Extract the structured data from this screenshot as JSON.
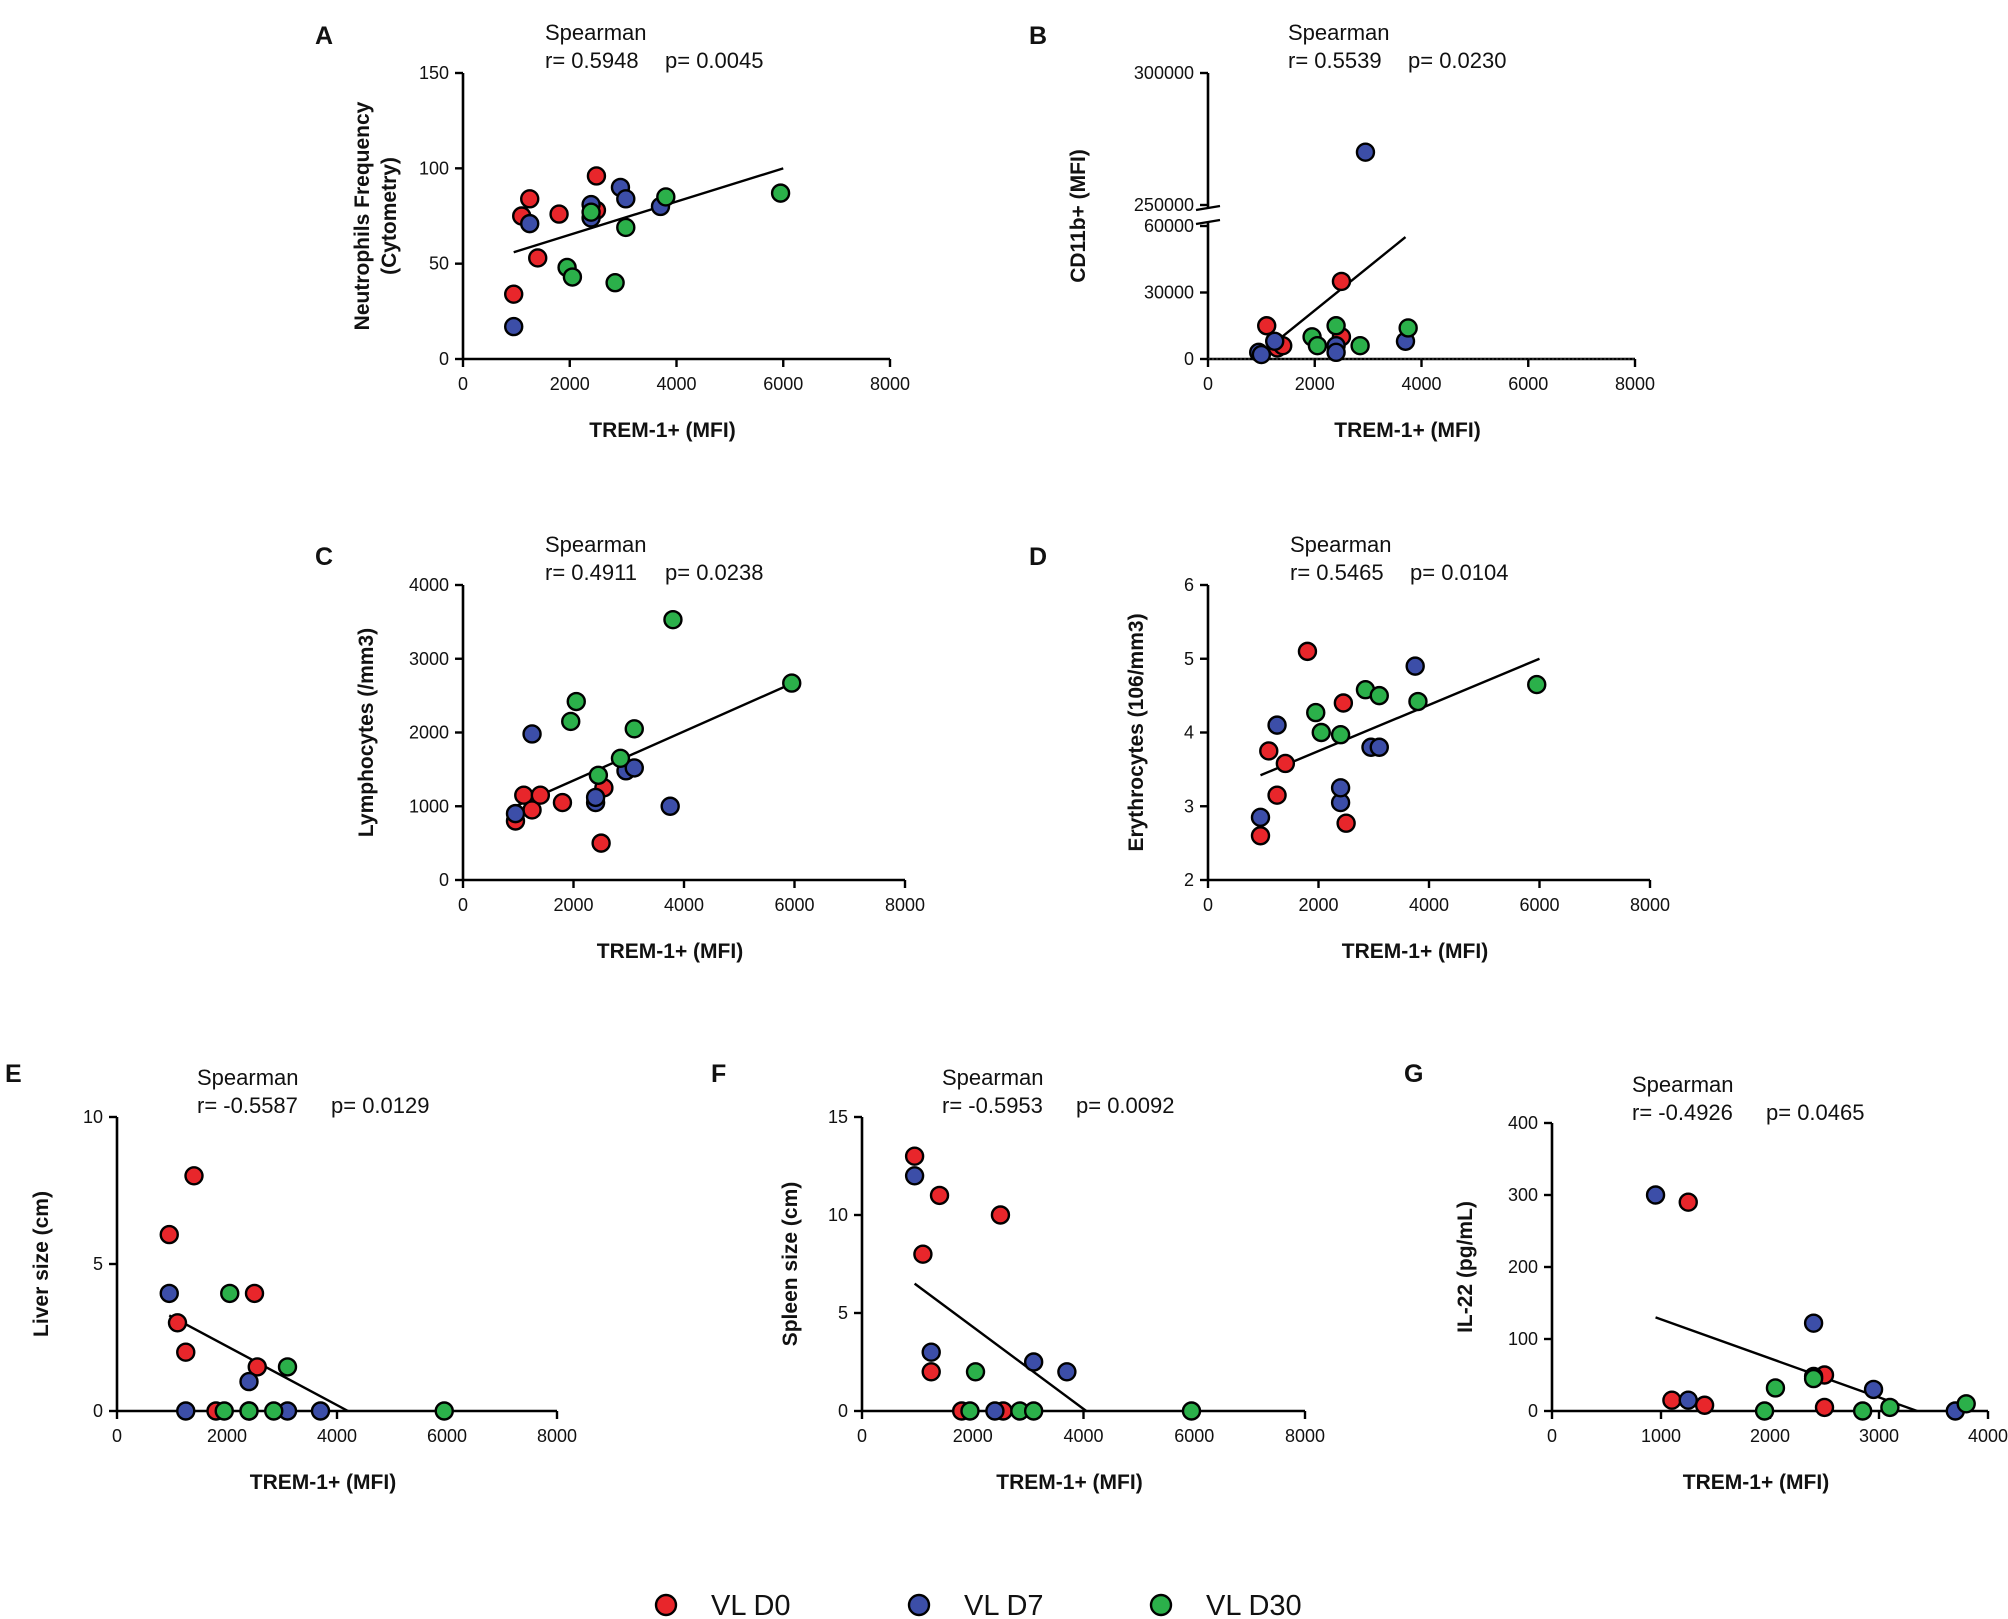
{
  "legend": [
    {
      "label": "VL D0",
      "color": "#e8262b"
    },
    {
      "label": "VL D7",
      "color": "#3c4ea8"
    },
    {
      "label": "VL D30",
      "color": "#2bb04a"
    }
  ],
  "chart_data": [
    {
      "panel": "A",
      "type": "scatter",
      "stat_title": "Spearman",
      "stat_r": "r= 0.5948",
      "stat_p": "p= 0.0045",
      "xlabel": "TREM-1+ (MFI)",
      "ylabel": [
        "Neutrophils Frequency",
        "(Cytometry)"
      ],
      "xlim": [
        0,
        8000
      ],
      "ylim": [
        0,
        150
      ],
      "xticks": [
        0,
        2000,
        4000,
        6000,
        8000
      ],
      "yticks": [
        0,
        50,
        100,
        150
      ],
      "fit": [
        [
          950,
          56
        ],
        [
          6000,
          100
        ]
      ],
      "series": [
        {
          "name": "VL D0",
          "points": [
            [
              950,
              34
            ],
            [
              1100,
              75
            ],
            [
              1250,
              84
            ],
            [
              1400,
              53
            ],
            [
              1800,
              76
            ],
            [
              2500,
              96
            ],
            [
              2500,
              78
            ]
          ]
        },
        {
          "name": "VL D7",
          "points": [
            [
              950,
              17
            ],
            [
              1250,
              71
            ],
            [
              2400,
              74
            ],
            [
              2400,
              81
            ],
            [
              2950,
              90
            ],
            [
              3050,
              84
            ],
            [
              3700,
              80
            ]
          ]
        },
        {
          "name": "VL D30",
          "points": [
            [
              1950,
              48
            ],
            [
              2050,
              43
            ],
            [
              2400,
              77
            ],
            [
              2850,
              40
            ],
            [
              3050,
              69
            ],
            [
              3800,
              85
            ],
            [
              5950,
              87
            ]
          ]
        }
      ]
    },
    {
      "panel": "B",
      "type": "scatter",
      "stat_title": "Spearman",
      "stat_r": "r= 0.5539",
      "stat_p": "p= 0.0230",
      "xlabel": "TREM-1+ (MFI)",
      "ylabel": [
        "CD11b+ (MFI)"
      ],
      "xlim": [
        0,
        8000
      ],
      "y_axis_break": {
        "lower_range": [
          0,
          60000
        ],
        "upper_range": [
          250000,
          300000
        ]
      },
      "xticks": [
        0,
        2000,
        4000,
        6000,
        8000
      ],
      "yticks": [
        0,
        30000,
        60000,
        250000,
        300000
      ],
      "fit": [
        [
          950,
          1500
        ],
        [
          3700,
          55000
        ]
      ],
      "series": [
        {
          "name": "VL D0",
          "points": [
            [
              1100,
              15000
            ],
            [
              1300,
              5000
            ],
            [
              1400,
              6000
            ],
            [
              2500,
              35000
            ],
            [
              2500,
              10000
            ]
          ]
        },
        {
          "name": "VL D7",
          "points": [
            [
              950,
              3000
            ],
            [
              1000,
              2000
            ],
            [
              1250,
              8000
            ],
            [
              2400,
              6000
            ],
            [
              2400,
              3000
            ],
            [
              2950,
              270000
            ],
            [
              3700,
              8000
            ]
          ]
        },
        {
          "name": "VL D30",
          "points": [
            [
              1950,
              10000
            ],
            [
              2050,
              6000
            ],
            [
              2400,
              15000
            ],
            [
              2850,
              6000
            ],
            [
              3750,
              14000
            ]
          ]
        }
      ]
    },
    {
      "panel": "C",
      "type": "scatter",
      "stat_title": "Spearman",
      "stat_r": "r= 0.4911",
      "stat_p": "p= 0.0238",
      "xlabel": "TREM-1+ (MFI)",
      "ylabel": [
        "Lymphocytes (/mm3)"
      ],
      "xlim": [
        0,
        8000
      ],
      "ylim": [
        0,
        4000
      ],
      "xticks": [
        0,
        2000,
        4000,
        6000,
        8000
      ],
      "yticks": [
        0,
        1000,
        2000,
        3000,
        4000
      ],
      "fit": [
        [
          950,
          1000
        ],
        [
          6000,
          2680
        ]
      ],
      "series": [
        {
          "name": "VL D0",
          "points": [
            [
              950,
              800
            ],
            [
              1100,
              1150
            ],
            [
              1250,
              950
            ],
            [
              1400,
              1150
            ],
            [
              1800,
              1050
            ],
            [
              2500,
              500
            ],
            [
              2550,
              1250
            ]
          ]
        },
        {
          "name": "VL D7",
          "points": [
            [
              950,
              900
            ],
            [
              1250,
              1980
            ],
            [
              2400,
              1050
            ],
            [
              2400,
              1120
            ],
            [
              2950,
              1480
            ],
            [
              3100,
              1520
            ],
            [
              3750,
              1000
            ]
          ]
        },
        {
          "name": "VL D30",
          "points": [
            [
              1950,
              2150
            ],
            [
              2050,
              2420
            ],
            [
              2450,
              1420
            ],
            [
              2850,
              1650
            ],
            [
              3100,
              2050
            ],
            [
              3800,
              3530
            ],
            [
              5950,
              2670
            ]
          ]
        }
      ]
    },
    {
      "panel": "D",
      "type": "scatter",
      "stat_title": "Spearman",
      "stat_r": "r= 0.5465",
      "stat_p": "p= 0.0104",
      "xlabel": "TREM-1+ (MFI)",
      "ylabel": [
        "Erythrocytes (106/mm3)"
      ],
      "xlim": [
        0,
        8000
      ],
      "ylim": [
        2,
        6
      ],
      "xticks": [
        0,
        2000,
        4000,
        6000,
        8000
      ],
      "yticks": [
        2,
        3,
        4,
        5,
        6
      ],
      "fit": [
        [
          950,
          3.42
        ],
        [
          6000,
          5.0
        ]
      ],
      "series": [
        {
          "name": "VL D0",
          "points": [
            [
              950,
              2.6
            ],
            [
              1100,
              3.75
            ],
            [
              1250,
              3.15
            ],
            [
              1400,
              3.58
            ],
            [
              1800,
              5.1
            ],
            [
              2450,
              4.4
            ],
            [
              2500,
              2.77
            ]
          ]
        },
        {
          "name": "VL D7",
          "points": [
            [
              950,
              2.85
            ],
            [
              1250,
              4.1
            ],
            [
              2400,
              3.05
            ],
            [
              2400,
              3.25
            ],
            [
              2950,
              3.8
            ],
            [
              3100,
              3.8
            ],
            [
              3750,
              4.9
            ]
          ]
        },
        {
          "name": "VL D30",
          "points": [
            [
              1950,
              4.27
            ],
            [
              2050,
              4.0
            ],
            [
              2400,
              3.97
            ],
            [
              2850,
              4.58
            ],
            [
              3100,
              4.5
            ],
            [
              3800,
              4.42
            ],
            [
              5950,
              4.65
            ]
          ]
        }
      ]
    },
    {
      "panel": "E",
      "type": "scatter",
      "stat_title": "Spearman",
      "stat_r": "r= -0.5587",
      "stat_p": "p= 0.0129",
      "xlabel": "TREM-1+ (MFI)",
      "ylabel": [
        "Liver size (cm)"
      ],
      "xlim": [
        0,
        8000
      ],
      "ylim": [
        0,
        10
      ],
      "xticks": [
        0,
        2000,
        4000,
        6000,
        8000
      ],
      "yticks": [
        0,
        5,
        10
      ],
      "fit": [
        [
          950,
          3.25
        ],
        [
          4200,
          0
        ]
      ],
      "series": [
        {
          "name": "VL D0",
          "points": [
            [
              950,
              6
            ],
            [
              1100,
              3
            ],
            [
              1250,
              2
            ],
            [
              1400,
              8
            ],
            [
              1800,
              0
            ],
            [
              2500,
              4
            ],
            [
              2550,
              1.5
            ]
          ]
        },
        {
          "name": "VL D7",
          "points": [
            [
              950,
              4
            ],
            [
              1250,
              0
            ],
            [
              2400,
              1
            ],
            [
              2400,
              0
            ],
            [
              3100,
              0
            ],
            [
              3700,
              0
            ]
          ]
        },
        {
          "name": "VL D30",
          "points": [
            [
              1950,
              0
            ],
            [
              2050,
              4
            ],
            [
              2400,
              0
            ],
            [
              2850,
              0
            ],
            [
              3100,
              1.5
            ],
            [
              5950,
              0
            ]
          ]
        }
      ]
    },
    {
      "panel": "F",
      "type": "scatter",
      "stat_title": "Spearman",
      "stat_r": "r= -0.5953",
      "stat_p": "p= 0.0092",
      "xlabel": "TREM-1+ (MFI)",
      "ylabel": [
        "Spleen size (cm)"
      ],
      "xlim": [
        0,
        8000
      ],
      "ylim": [
        0,
        15
      ],
      "xticks": [
        0,
        2000,
        4000,
        6000,
        8000
      ],
      "yticks": [
        0,
        5,
        10,
        15
      ],
      "fit": [
        [
          950,
          6.5
        ],
        [
          4050,
          0
        ]
      ],
      "series": [
        {
          "name": "VL D0",
          "points": [
            [
              950,
              13
            ],
            [
              1100,
              8
            ],
            [
              1250,
              2
            ],
            [
              1400,
              11
            ],
            [
              1800,
              0
            ],
            [
              2500,
              10
            ],
            [
              2550,
              0
            ]
          ]
        },
        {
          "name": "VL D7",
          "points": [
            [
              950,
              12
            ],
            [
              1250,
              3
            ],
            [
              2400,
              0
            ],
            [
              3100,
              2.5
            ],
            [
              3700,
              2
            ]
          ]
        },
        {
          "name": "VL D30",
          "points": [
            [
              2050,
              2
            ],
            [
              1950,
              0
            ],
            [
              2850,
              0
            ],
            [
              3100,
              0
            ],
            [
              5950,
              0
            ]
          ]
        }
      ]
    },
    {
      "panel": "G",
      "type": "scatter",
      "stat_title": "Spearman",
      "stat_r": "r= -0.4926",
      "stat_p": "p= 0.0465",
      "xlabel": "TREM-1+ (MFI)",
      "ylabel": [
        "IL-22 (pg/mL)"
      ],
      "xlim": [
        0,
        4000
      ],
      "ylim": [
        0,
        400
      ],
      "xticks": [
        0,
        1000,
        2000,
        3000,
        4000
      ],
      "yticks": [
        0,
        100,
        200,
        300,
        400
      ],
      "fit": [
        [
          950,
          130
        ],
        [
          3350,
          0
        ]
      ],
      "series": [
        {
          "name": "VL D0",
          "points": [
            [
              1100,
              15
            ],
            [
              1250,
              290
            ],
            [
              1400,
              8
            ],
            [
              2500,
              50
            ],
            [
              2500,
              5
            ]
          ]
        },
        {
          "name": "VL D7",
          "points": [
            [
              950,
              300
            ],
            [
              1250,
              15
            ],
            [
              2400,
              122
            ],
            [
              2400,
              48
            ],
            [
              2950,
              30
            ],
            [
              3700,
              0
            ]
          ]
        },
        {
          "name": "VL D30",
          "points": [
            [
              1950,
              0
            ],
            [
              2050,
              32
            ],
            [
              2400,
              45
            ],
            [
              2850,
              0
            ],
            [
              3100,
              5
            ],
            [
              3800,
              10
            ]
          ]
        }
      ]
    }
  ]
}
